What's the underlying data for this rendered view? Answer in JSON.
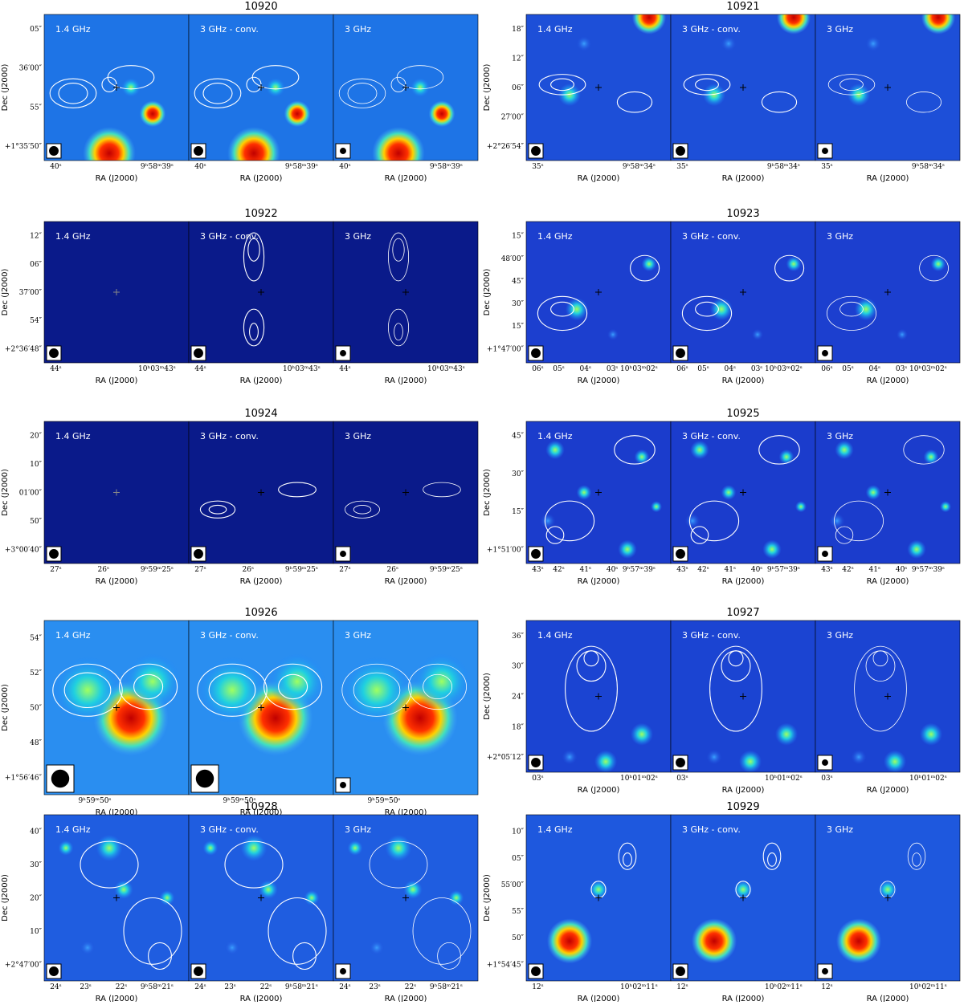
{
  "panels": [
    {
      "title": "10920",
      "labels": [
        "1.4 GHz",
        "3 GHz - conv.",
        "3 GHz"
      ],
      "ylabel": "Dec (J2000)",
      "xlabel": "RA (J2000)",
      "yticks": [
        "05″",
        "36′00″",
        "55″",
        "+1°35′50″"
      ],
      "xticks": [
        "40ˢ",
        "9ʰ58ᵐ39ˢ"
      ]
    },
    {
      "title": "10921",
      "labels": [
        "1.4 GHz",
        "3 GHz - conv.",
        "3 GHz"
      ],
      "ylabel": "Dec (J2000)",
      "xlabel": "RA (J2000)",
      "yticks": [
        "18″",
        "12″",
        "06″",
        "27′00″",
        "+2°26′54″"
      ],
      "xticks": [
        "35ˢ",
        "9ʰ58ᵐ34ˢ"
      ]
    },
    {
      "title": "10922",
      "labels": [
        "1.4 GHz",
        "3 GHz - conv.",
        "3 GHz"
      ],
      "ylabel": "Dec (J2000)",
      "xlabel": "RA (J2000)",
      "yticks": [
        "12″",
        "06″",
        "37′00″",
        "54″",
        "+2°36′48″"
      ],
      "xticks": [
        "44ˢ",
        "10ʰ03ᵐ43ˢ"
      ]
    },
    {
      "title": "10923",
      "labels": [
        "1.4 GHz",
        "3 GHz - conv.",
        "3 GHz"
      ],
      "ylabel": "Dec (J2000)",
      "xlabel": "RA (J2000)",
      "yticks": [
        "15″",
        "48′00″",
        "45″",
        "30″",
        "15″",
        "+1°47′00″"
      ],
      "xticks": [
        "06ˢ",
        "05ˢ",
        "04ˢ",
        "03ˢ",
        "10ʰ03ᵐ02ˢ"
      ]
    },
    {
      "title": "10924",
      "labels": [
        "1.4 GHz",
        "3 GHz - conv.",
        "3 GHz"
      ],
      "ylabel": "Dec (J2000)",
      "xlabel": "RA (J2000)",
      "yticks": [
        "20″",
        "10″",
        "01′00″",
        "50″",
        "+3°00′40″"
      ],
      "xticks": [
        "27ˢ",
        "26ˢ",
        "9ʰ59ᵐ25ˢ"
      ]
    },
    {
      "title": "10925",
      "labels": [
        "1.4 GHz",
        "3 GHz - conv.",
        "3 GHz"
      ],
      "ylabel": "Dec (J2000)",
      "xlabel": "RA (J2000)",
      "yticks": [
        "45″",
        "30″",
        "15″",
        "+1°51′00″"
      ],
      "xticks": [
        "43ˢ",
        "42ˢ",
        "41ˢ",
        "40ˢ",
        "9ʰ57ᵐ39ˢ"
      ]
    },
    {
      "title": "10926",
      "labels": [
        "1.4 GHz",
        "3 GHz - conv.",
        "3 GHz"
      ],
      "ylabel": "Dec (J2000)",
      "xlabel": "RA (J2000)",
      "yticks": [
        "54″",
        "52″",
        "50″",
        "48″",
        "+1°56′46″"
      ],
      "xticks": [
        "9ʰ59ᵐ50ˢ"
      ]
    },
    {
      "title": "10927",
      "labels": [
        "1.4 GHz",
        "3 GHz - conv.",
        "3 GHz"
      ],
      "ylabel": "Dec (J2000)",
      "xlabel": "RA (J2000)",
      "yticks": [
        "36″",
        "30″",
        "24″",
        "18″",
        "+2°05′12″"
      ],
      "xticks": [
        "03ˢ",
        "10ʰ01ᵐ02ˢ"
      ]
    },
    {
      "title": "10928",
      "labels": [
        "1.4 GHz",
        "3 GHz - conv.",
        "3 GHz"
      ],
      "ylabel": "Dec (J2000)",
      "xlabel": "RA (J2000)",
      "yticks": [
        "40″",
        "30″",
        "20″",
        "10″",
        "+2°47′00″"
      ],
      "xticks": [
        "24ˢ",
        "23ˢ",
        "22ˢ",
        "9ʰ58ᵐ21ˢ"
      ]
    },
    {
      "title": "10929",
      "labels": [
        "1.4 GHz",
        "3 GHz - conv.",
        "3 GHz"
      ],
      "ylabel": "Dec (J2000)",
      "xlabel": "RA (J2000)",
      "yticks": [
        "10″",
        "05″",
        "55′00″",
        "55″",
        "50″",
        "+1°54′45″"
      ],
      "xticks": [
        "12ˢ",
        "10ʰ02ᵐ11ˢ"
      ]
    }
  ]
}
